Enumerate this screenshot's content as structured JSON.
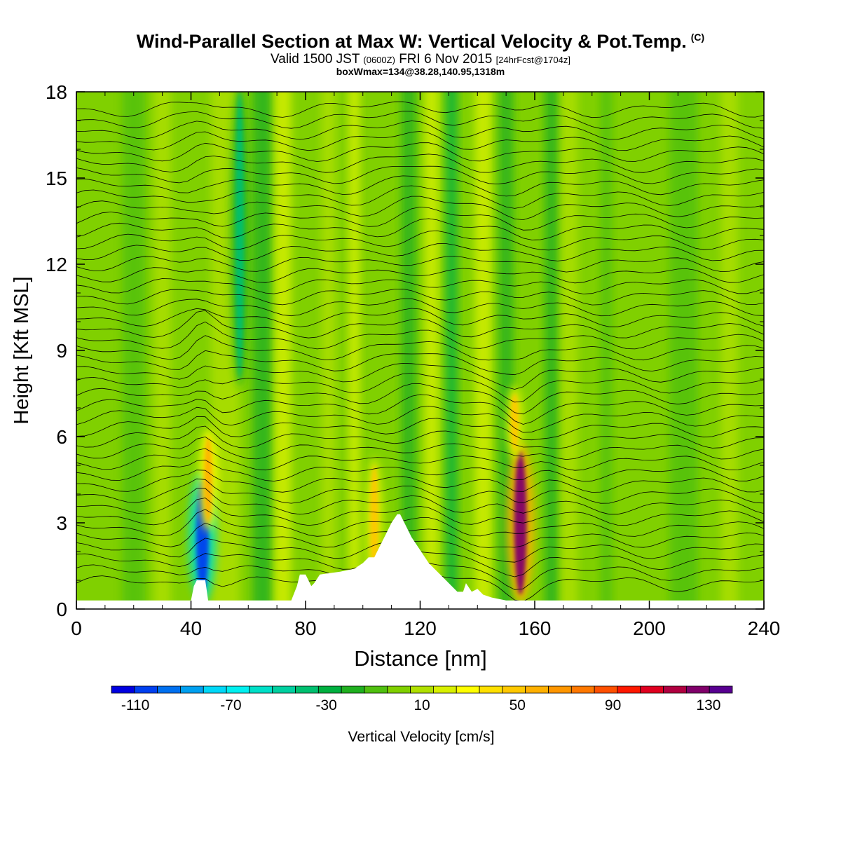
{
  "title": {
    "main": "Wind-Parallel Section at Max W: Vertical Velocity & Pot.Temp.",
    "copyright": "(C)",
    "valid_prefix": "Valid 1500 JST",
    "valid_utc": "(0600Z)",
    "valid_date": "FRI 6 Nov 2015",
    "forecast": "[24hrFcst@1704z]",
    "box_info": "boxWmax=134@38.28,140.95,1318m"
  },
  "chart_data": {
    "type": "heatmap",
    "xlabel": "Distance [nm]",
    "ylabel": "Height [Kft MSL]",
    "xlim": [
      0,
      240
    ],
    "ylim": [
      0,
      18
    ],
    "x_ticks": [
      "0",
      "40",
      "80",
      "120",
      "160",
      "200",
      "240"
    ],
    "y_ticks": [
      "0",
      "3",
      "6",
      "9",
      "12",
      "15",
      "18"
    ],
    "colorbar": {
      "label": "Vertical Velocity [cm/s]",
      "min": -120,
      "max": 140,
      "step": 10,
      "tick_labels": [
        "-110",
        "-70",
        "-30",
        "10",
        "50",
        "90",
        "130"
      ],
      "colors": [
        "#0000e0",
        "#0040f0",
        "#0070f0",
        "#00a0f0",
        "#00d8f8",
        "#00f0f0",
        "#00e0c8",
        "#00d0a0",
        "#00c070",
        "#00b040",
        "#20b020",
        "#50c010",
        "#80d000",
        "#b0e000",
        "#d8f000",
        "#ffff00",
        "#ffe000",
        "#ffc800",
        "#ffb000",
        "#ff9600",
        "#ff7800",
        "#ff5000",
        "#ff1800",
        "#e00020",
        "#b00040",
        "#80006a",
        "#580090"
      ]
    },
    "background_w": 0,
    "features": [
      {
        "x": 44,
        "y_bottom": 0.5,
        "y_top": 4.5,
        "w": -110
      },
      {
        "x": 46,
        "y_bottom": 3.0,
        "y_top": 6.0,
        "w": 60
      },
      {
        "x": 57,
        "y_bottom": 8.0,
        "y_top": 18.0,
        "w": -40
      },
      {
        "x": 104,
        "y_bottom": 1.0,
        "y_top": 5.0,
        "w": 50
      },
      {
        "x": 155,
        "y_bottom": 0.5,
        "y_top": 5.5,
        "w": 130
      },
      {
        "x": 153,
        "y_bottom": 5.5,
        "y_top": 7.5,
        "w": 50
      }
    ],
    "terrain": [
      [
        0,
        0.3
      ],
      [
        40,
        0.3
      ],
      [
        41,
        0.8
      ],
      [
        42,
        1.0
      ],
      [
        45,
        1.0
      ],
      [
        46,
        0.3
      ],
      [
        75,
        0.3
      ],
      [
        77,
        0.8
      ],
      [
        78,
        1.2
      ],
      [
        80,
        1.2
      ],
      [
        82,
        0.8
      ],
      [
        83,
        0.9
      ],
      [
        85,
        1.2
      ],
      [
        92,
        1.3
      ],
      [
        97,
        1.4
      ],
      [
        100,
        1.6
      ],
      [
        102,
        1.8
      ],
      [
        104,
        1.8
      ],
      [
        106,
        2.2
      ],
      [
        108,
        2.6
      ],
      [
        110,
        3.0
      ],
      [
        112,
        3.3
      ],
      [
        113,
        3.3
      ],
      [
        115,
        2.9
      ],
      [
        117,
        2.5
      ],
      [
        119,
        2.2
      ],
      [
        121,
        1.9
      ],
      [
        123,
        1.6
      ],
      [
        125,
        1.4
      ],
      [
        127,
        1.2
      ],
      [
        129,
        1.0
      ],
      [
        131,
        0.8
      ],
      [
        133,
        0.6
      ],
      [
        135,
        0.6
      ],
      [
        136,
        0.9
      ],
      [
        138,
        0.6
      ],
      [
        140,
        0.7
      ],
      [
        142,
        0.5
      ],
      [
        145,
        0.4
      ],
      [
        150,
        0.3
      ],
      [
        240,
        0.3
      ]
    ],
    "isentropes": {
      "count": 44,
      "bottom_height": 0.9,
      "top_height": 17.4
    }
  }
}
